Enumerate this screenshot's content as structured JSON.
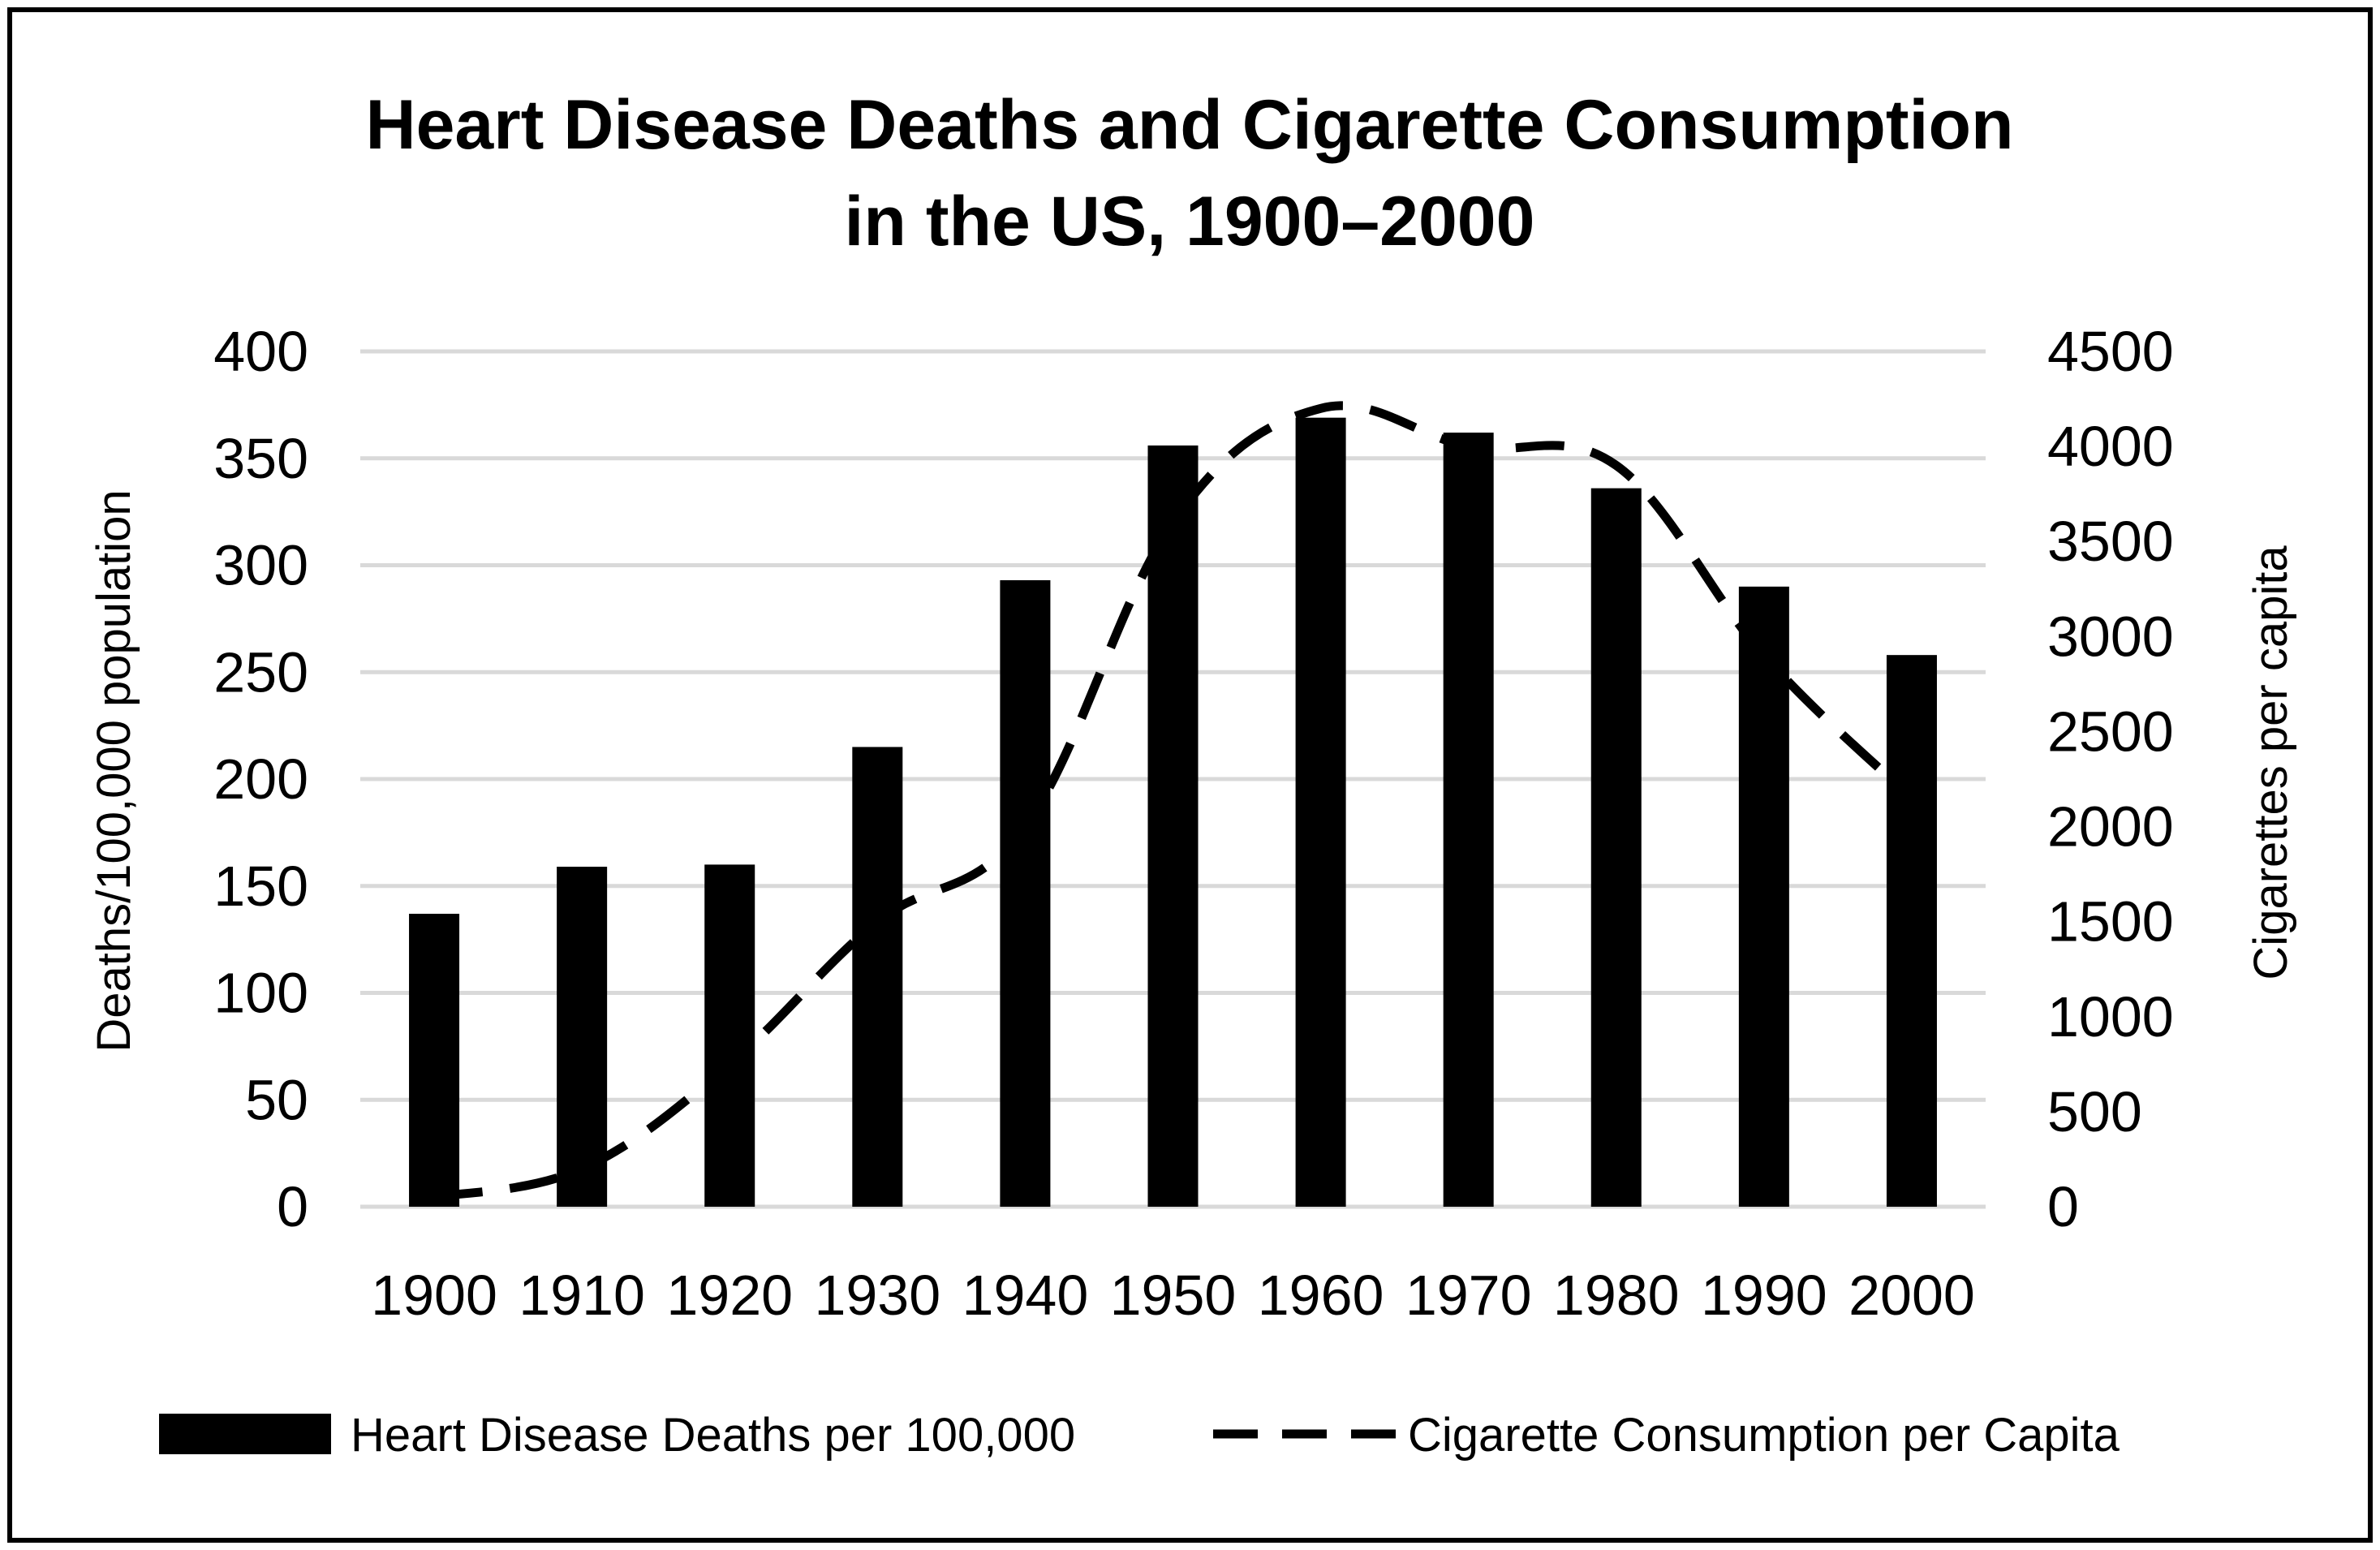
{
  "chart_data": {
    "type": "bar+line",
    "title_lines": [
      "Heart Disease Deaths and Cigarette Consumption",
      "in  the US, 1900–2000"
    ],
    "categories": [
      "1900",
      "1910",
      "1920",
      "1930",
      "1940",
      "1950",
      "1960",
      "1970",
      "1980",
      "1990",
      "2000"
    ],
    "series": [
      {
        "name": "Heart Disease Deaths per 100,000",
        "kind": "bar",
        "axis": "left",
        "color": "#000000",
        "values": [
          137,
          159,
          160,
          215,
          293,
          356,
          369,
          362,
          336,
          290,
          258
        ]
      },
      {
        "name": "Cigarette Consumption per Capita",
        "kind": "line",
        "style": "dashed",
        "axis": "right",
        "color": "#000000",
        "values": [
          50,
          200,
          750,
          1500,
          2000,
          3600,
          4200,
          4000,
          3900,
          2900,
          2150
        ]
      }
    ],
    "ylabel": "Deaths/100,000 population",
    "y2label": "Cigarettes per capita",
    "ylim": [
      0,
      400
    ],
    "y2lim": [
      0,
      4500
    ],
    "yticks": [
      "0",
      "50",
      "100",
      "150",
      "200",
      "250",
      "300",
      "350",
      "400"
    ],
    "y2ticks": [
      "0",
      "500",
      "1000",
      "1500",
      "2000",
      "2500",
      "3000",
      "3500",
      "4000",
      "4500"
    ],
    "grid": true,
    "legend_position": "bottom"
  }
}
